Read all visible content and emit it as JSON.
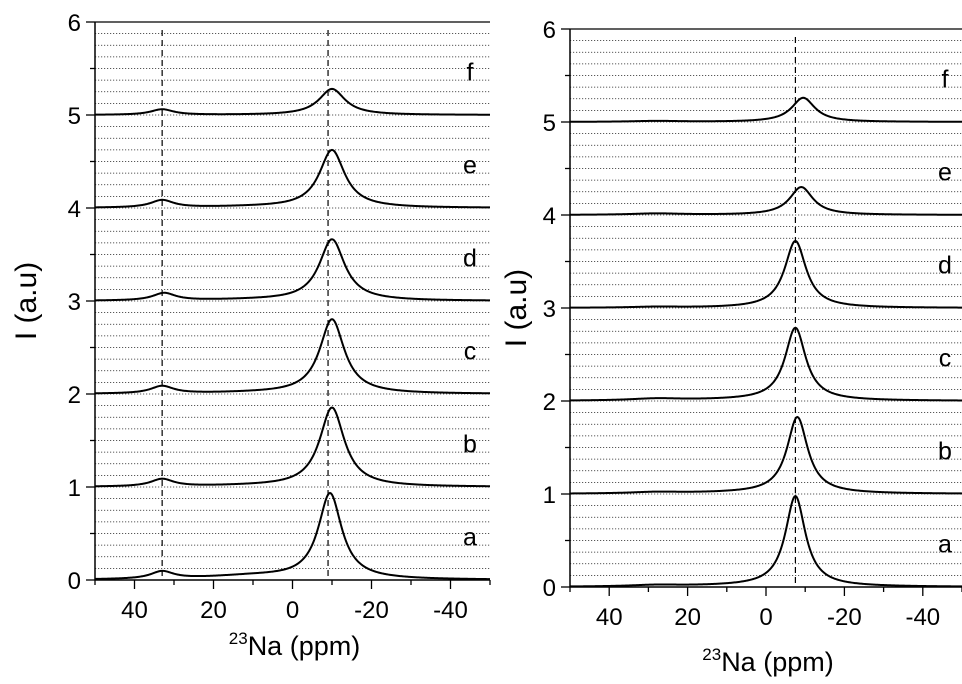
{
  "chart_data": [
    {
      "type": "line",
      "panel": "left",
      "xlabel_sup": "23",
      "xlabel_main": "Na (ppm)",
      "ylabel": "I (a.u)",
      "xlim": [
        50,
        -50
      ],
      "ylim": [
        0,
        6
      ],
      "x_ticks": [
        40,
        20,
        0,
        -20,
        -40
      ],
      "x_tick_labels": [
        "40",
        "20",
        "0",
        "-20",
        "-40"
      ],
      "y_ticks": [
        0,
        1,
        2,
        3,
        4,
        5,
        6
      ],
      "y_tick_labels": [
        "0",
        "1",
        "2",
        "3",
        "4",
        "5",
        "6"
      ],
      "grid": "horizontal dotted",
      "reference_lines_x": [
        33,
        -9
      ],
      "curve_color": "#000000",
      "series": [
        {
          "label": "a",
          "offset": 0,
          "main_peak": {
            "center": -9.5,
            "height": 0.92,
            "width": 3.6
          },
          "side_peak": {
            "center": 33,
            "height": 0.08,
            "width": 3.5
          },
          "broad": {
            "center": 10,
            "height": 0.04,
            "width": 15
          }
        },
        {
          "label": "b",
          "offset": 1,
          "main_peak": {
            "center": -10,
            "height": 0.85,
            "width": 3.8
          },
          "side_peak": {
            "center": 33,
            "height": 0.08,
            "width": 3.5
          },
          "broad": {
            "center": 10,
            "height": 0.01,
            "width": 15
          }
        },
        {
          "label": "c",
          "offset": 2,
          "main_peak": {
            "center": -10,
            "height": 0.8,
            "width": 3.8
          },
          "side_peak": {
            "center": 33,
            "height": 0.08,
            "width": 3.5
          },
          "broad": {
            "center": 10,
            "height": 0.01,
            "width": 15
          }
        },
        {
          "label": "d",
          "offset": 3,
          "main_peak": {
            "center": -10,
            "height": 0.66,
            "width": 3.9
          },
          "side_peak": {
            "center": 32.5,
            "height": 0.08,
            "width": 3.5
          },
          "broad": {
            "center": 10,
            "height": 0.01,
            "width": 15
          }
        },
        {
          "label": "e",
          "offset": 4,
          "main_peak": {
            "center": -10,
            "height": 0.62,
            "width": 3.9
          },
          "side_peak": {
            "center": 33,
            "height": 0.08,
            "width": 3.5
          },
          "broad": {
            "center": 10,
            "height": 0.01,
            "width": 15
          }
        },
        {
          "label": "f",
          "offset": 5,
          "main_peak": {
            "center": -10,
            "height": 0.28,
            "width": 4
          },
          "side_peak": {
            "center": 33,
            "height": 0.06,
            "width": 3.5
          },
          "broad": {
            "center": 10,
            "height": 0.0,
            "width": 15
          }
        }
      ]
    },
    {
      "type": "line",
      "panel": "right",
      "xlabel_sup": "23",
      "xlabel_main": "Na (ppm)",
      "ylabel": "I (a.u)",
      "xlim": [
        50,
        -50
      ],
      "ylim": [
        0,
        6
      ],
      "x_ticks": [
        40,
        20,
        0,
        -20,
        -40
      ],
      "x_tick_labels": [
        "40",
        "20",
        "0",
        "-20",
        "-40"
      ],
      "y_ticks": [
        0,
        1,
        2,
        3,
        4,
        5,
        6
      ],
      "y_tick_labels": [
        "0",
        "1",
        "2",
        "3",
        "4",
        "5",
        "6"
      ],
      "grid": "horizontal dotted",
      "reference_lines_x": [
        -7.5
      ],
      "curve_color": "#000000",
      "series": [
        {
          "label": "a",
          "offset": 0,
          "main_peak": {
            "center": -7.5,
            "height": 0.97,
            "width": 3.1
          },
          "side_peak": {
            "center": 28,
            "height": 0.015,
            "width": 8
          },
          "broad": {
            "center": 5,
            "height": 0.01,
            "width": 20
          }
        },
        {
          "label": "b",
          "offset": 1,
          "main_peak": {
            "center": -8,
            "height": 0.82,
            "width": 3.2
          },
          "side_peak": {
            "center": 28,
            "height": 0.015,
            "width": 8
          },
          "broad": {
            "center": 5,
            "height": 0.01,
            "width": 20
          }
        },
        {
          "label": "c",
          "offset": 2,
          "main_peak": {
            "center": -7.5,
            "height": 0.78,
            "width": 3.2
          },
          "side_peak": {
            "center": 28,
            "height": 0.02,
            "width": 8
          },
          "broad": {
            "center": 5,
            "height": 0.01,
            "width": 20
          }
        },
        {
          "label": "d",
          "offset": 3,
          "main_peak": {
            "center": -7.5,
            "height": 0.72,
            "width": 3.3
          },
          "side_peak": {
            "center": 28,
            "height": 0.01,
            "width": 8
          },
          "broad": {
            "center": 5,
            "height": 0.0,
            "width": 20
          }
        },
        {
          "label": "e",
          "offset": 4,
          "main_peak": {
            "center": -9,
            "height": 0.3,
            "width": 3.6
          },
          "side_peak": {
            "center": 28,
            "height": 0.015,
            "width": 8
          },
          "broad": {
            "center": 5,
            "height": 0.0,
            "width": 20
          }
        },
        {
          "label": "f",
          "offset": 5,
          "main_peak": {
            "center": -9.5,
            "height": 0.26,
            "width": 3.6
          },
          "side_peak": {
            "center": 28,
            "height": 0.01,
            "width": 8
          },
          "broad": {
            "center": 5,
            "height": 0.0,
            "width": 20
          }
        }
      ]
    }
  ]
}
